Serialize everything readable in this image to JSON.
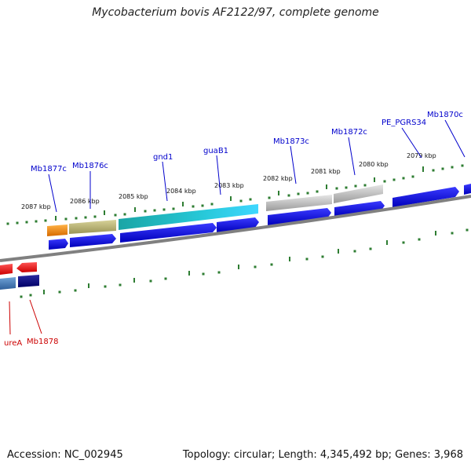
{
  "title": "Mycobacterium bovis AF2122/97, complete genome",
  "footer": {
    "accession": "Accession: NC_002945",
    "summary": "Topology: circular; Length: 4,345,492 bp; Genes: 3,968"
  },
  "scale_labels": [
    "2087 kbp",
    "2086 kbp",
    "2085 kbp",
    "2084 kbp",
    "2083 kbp",
    "2082 kbp",
    "2081 kbp",
    "2080 kbp",
    "2079 kbp"
  ],
  "gene_labels_top": [
    "Mb1877c",
    "Mb1876c",
    "gnd1",
    "guaB1",
    "Mb1873c",
    "Mb1872c",
    "PE_PGRS34",
    "Mb1870c"
  ],
  "gene_labels_bottom": [
    "ureA",
    "Mb1878"
  ],
  "colors": {
    "label_top": "#0000cc",
    "label_bottom": "#cc0000",
    "tick": "#2e7d32",
    "backbone": "#808080",
    "cds": "#0000ee"
  }
}
